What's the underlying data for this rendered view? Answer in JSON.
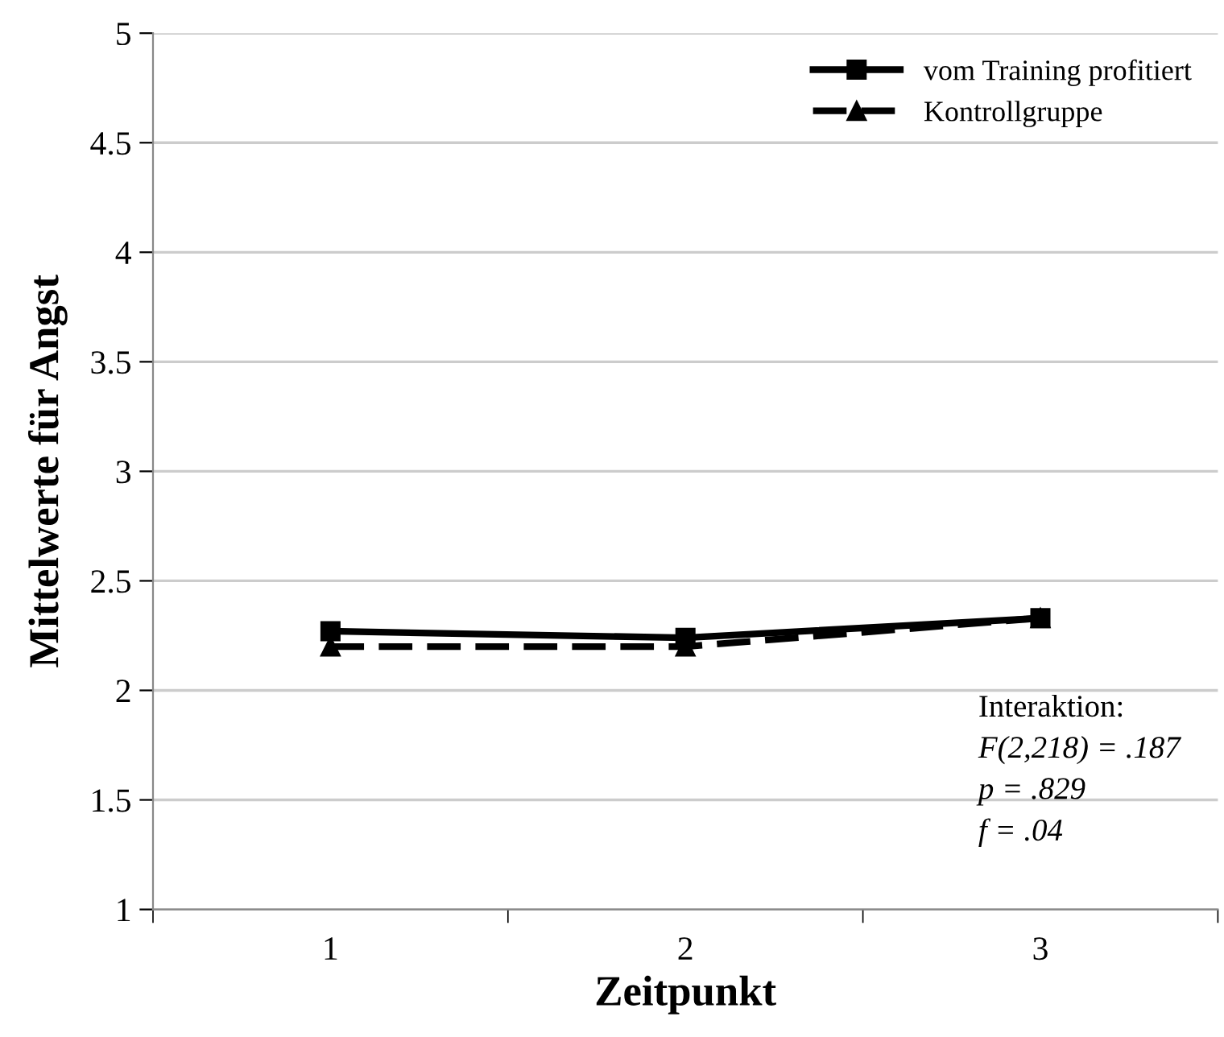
{
  "chart_data": {
    "type": "line",
    "xlabel": "Zeitpunkt",
    "ylabel": "Mittelwerte für Angst",
    "categories": [
      "1",
      "2",
      "3"
    ],
    "series": [
      {
        "name": "vom Training profitiert",
        "color": "#000000",
        "values": [
          2.27,
          2.24,
          2.33
        ],
        "marker": "square",
        "line_style": "solid"
      },
      {
        "name": "Kontrollgruppe",
        "color": "#000000",
        "values": [
          2.2,
          2.2,
          2.33
        ],
        "marker": "triangle",
        "line_style": "dashed"
      }
    ],
    "ylim": [
      1,
      5
    ],
    "yticks": [
      1,
      1.5,
      2,
      2.5,
      3,
      3.5,
      4,
      4.5,
      5
    ],
    "grid": "y",
    "legend": "top right",
    "annotations": [
      "Interaktion:",
      "F(2,218) = .187",
      "p = .829",
      "f = .04"
    ]
  }
}
